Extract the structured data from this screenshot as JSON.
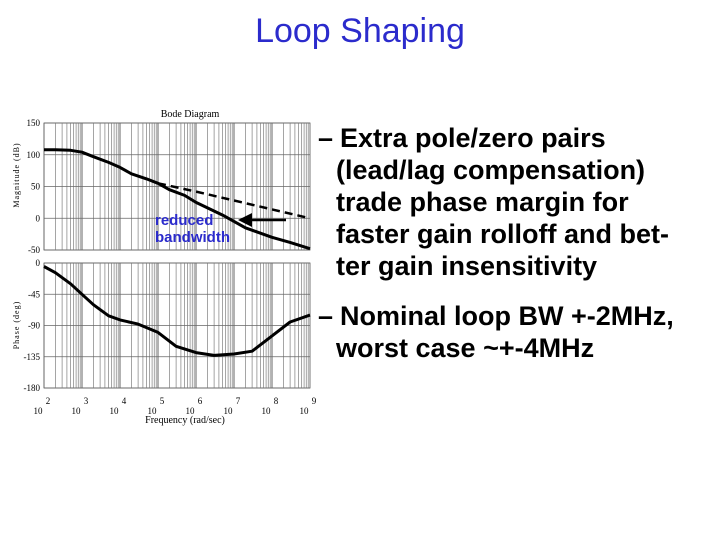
{
  "slide": {
    "title": "Loop Shaping",
    "bullets": [
      {
        "lines": [
          "Extra pole/zero pairs",
          "(lead/lag compensation)",
          "trade phase margin for",
          "faster gain rolloff and bet-",
          "ter gain insensitivity"
        ]
      },
      {
        "lines": [
          "Nominal loop BW +-2MHz,",
          "worst case ~+-4MHz"
        ]
      }
    ]
  },
  "chart_data": [
    {
      "type": "line",
      "title": "Bode Diagram",
      "ylabel": "Magnitude (dB)",
      "xscale": "log",
      "xlim": [
        100,
        1000000000
      ],
      "ylim": [
        -50,
        150
      ],
      "yticks": [
        "150",
        "100",
        "50",
        "0",
        "-50"
      ],
      "grid": true,
      "annotation": {
        "text_lines": [
          "reduced",
          "bandwidth"
        ],
        "color": "#2b2bcc"
      },
      "series": [
        {
          "style": "solid",
          "x": [
            100,
            200,
            500,
            1000,
            2000,
            5000,
            10000,
            20000,
            50000,
            100000,
            200000,
            500000,
            1000000,
            5000000,
            20000000,
            100000000,
            300000000,
            1000000000
          ],
          "y": [
            108,
            108,
            107,
            104,
            97,
            88,
            80,
            70,
            62,
            55,
            45,
            36,
            25,
            5,
            -15,
            -30,
            -38,
            -48
          ]
        },
        {
          "style": "dashed",
          "x": [
            100000,
            1000000,
            10000000,
            100000000,
            1000000000
          ],
          "y": [
            55,
            42,
            28,
            14,
            0
          ]
        }
      ]
    },
    {
      "type": "line",
      "ylabel": "Phase (deg)",
      "xlabel": "Frequency (rad/sec)",
      "xscale": "log",
      "xlim": [
        100,
        1000000000
      ],
      "ylim": [
        -180,
        0
      ],
      "yticks": [
        "0",
        "-45",
        "-90",
        "-135",
        "-180"
      ],
      "xtick_exponents": [
        "2",
        "3",
        "4",
        "5",
        "6",
        "7",
        "8",
        "9"
      ],
      "xtick_base": "10",
      "grid": true,
      "series": [
        {
          "style": "solid",
          "x": [
            100,
            200,
            500,
            1000,
            2000,
            5000,
            10000,
            30000,
            100000,
            300000,
            1000000,
            3000000,
            10000000,
            30000000,
            100000000,
            300000000,
            1000000000
          ],
          "y": [
            -5,
            -14,
            -30,
            -45,
            -60,
            -76,
            -82,
            -88,
            -100,
            -120,
            -129,
            -133,
            -131,
            -127,
            -105,
            -85,
            -75
          ]
        }
      ]
    }
  ]
}
